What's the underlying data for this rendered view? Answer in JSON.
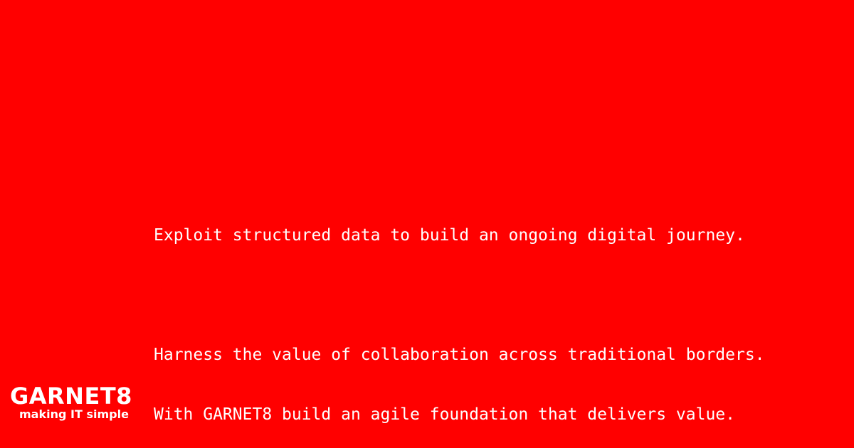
{
  "background_color": "#ff0000",
  "text_color": "#ffffff",
  "message": {
    "line1": "Exploit structured data to build an ongoing digital journey.",
    "line2": "",
    "line3": "Harness the value of collaboration across traditional borders.",
    "line4": "With GARNET8 build an agile foundation that delivers value."
  },
  "brand": {
    "name": "GARNET8",
    "tagline": "making IT simple"
  }
}
